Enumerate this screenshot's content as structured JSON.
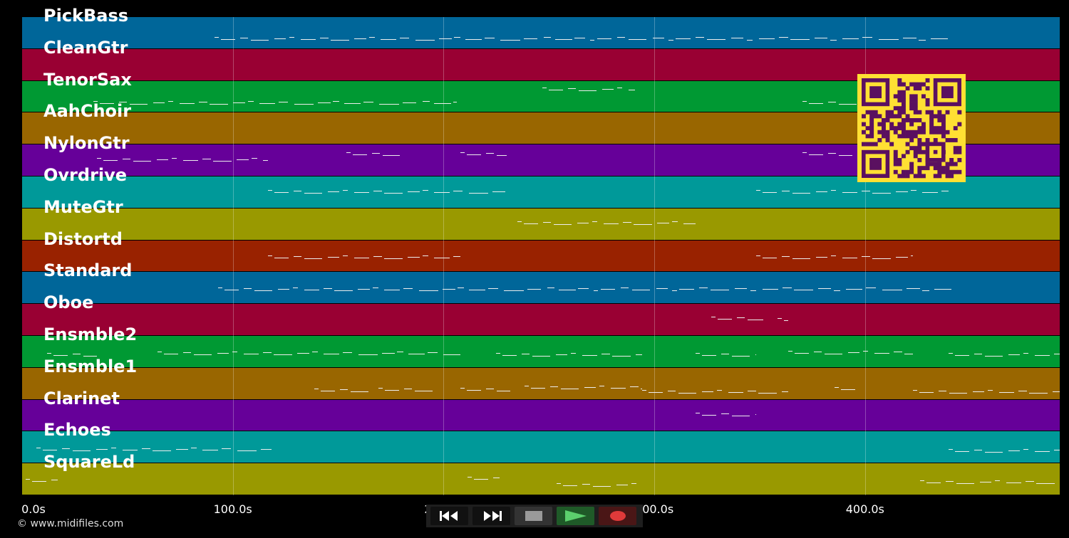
{
  "tracks": [
    {
      "name": "PickBass",
      "color": "#006699"
    },
    {
      "name": "CleanGtr",
      "color": "#990033"
    },
    {
      "name": "TenorSax",
      "color": "#009933"
    },
    {
      "name": "AahChoir",
      "color": "#996600"
    },
    {
      "name": "NylonGtr",
      "color": "#660099"
    },
    {
      "name": "Ovrdrive",
      "color": "#009999"
    },
    {
      "name": "MuteGtr",
      "color": "#999900"
    },
    {
      "name": "Distortd",
      "color": "#992200"
    },
    {
      "name": "Standard",
      "color": "#006699"
    },
    {
      "name": "Oboe",
      "color": "#990033"
    },
    {
      "name": "Ensmble2",
      "color": "#009933"
    },
    {
      "name": "Ensmble1",
      "color": "#996600"
    },
    {
      "name": "Clarinet",
      "color": "#660099"
    },
    {
      "name": "Echoes",
      "color": "#009999"
    },
    {
      "name": "SquareLd",
      "color": "#999900"
    }
  ],
  "time_axis": {
    "ticks": [
      {
        "label": "0.0s",
        "seconds": 0
      },
      {
        "label": "100.0s",
        "seconds": 100
      },
      {
        "label": "200.0s",
        "seconds": 200
      },
      {
        "label": "300.0s",
        "seconds": 300
      },
      {
        "label": "400.0s",
        "seconds": 400
      }
    ],
    "max_seconds": 492.5
  },
  "transport": [
    {
      "name": "rewind-icon",
      "bg": "#111111"
    },
    {
      "name": "fast-forward-icon",
      "bg": "#111111"
    },
    {
      "name": "stop-icon",
      "bg": "#333333"
    },
    {
      "name": "play-icon",
      "bg": "#1f5a28"
    },
    {
      "name": "record-icon",
      "bg": "#4a1616"
    }
  ],
  "copyright": "© www.midifiles.com",
  "qr_code": {
    "fg": "#5a1060",
    "bg": "#ffe033"
  }
}
